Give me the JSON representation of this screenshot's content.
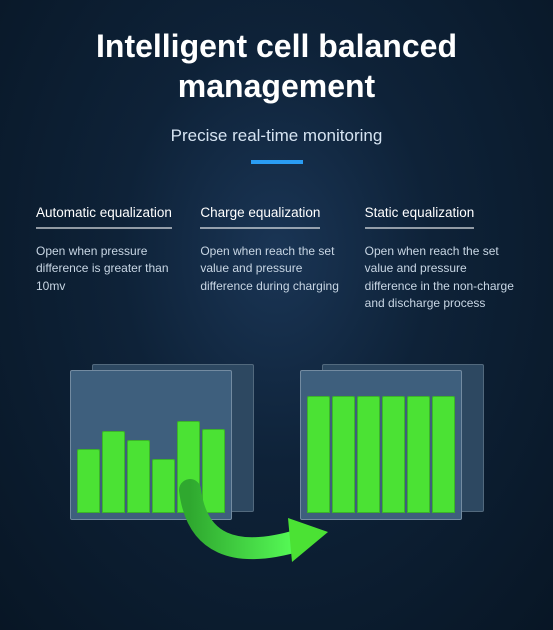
{
  "title_line1": "Intelligent cell balanced",
  "title_line2": "management",
  "subtitle": "Precise real-time monitoring",
  "accent_color": "#2a9df4",
  "columns": [
    {
      "head": "Automatic equalization",
      "body": "Open when pressure difference is greater than 10mv"
    },
    {
      "head": "Charge equalization",
      "body": "Open when reach the set value and pressure difference during charging"
    },
    {
      "head": "Static equalization",
      "body": "Open when reach the set value and pressure difference in the non-charge and discharge process"
    }
  ],
  "diagram": {
    "box_color_front": "#3e5f7d",
    "box_color_back": "#2d4861",
    "cell_color": "#4be234",
    "arrow_color": "#49e24a",
    "left_heights_pct": [
      47,
      60,
      54,
      40,
      68,
      62
    ],
    "right_heights_pct": [
      86,
      86,
      86,
      86,
      86,
      86
    ]
  }
}
